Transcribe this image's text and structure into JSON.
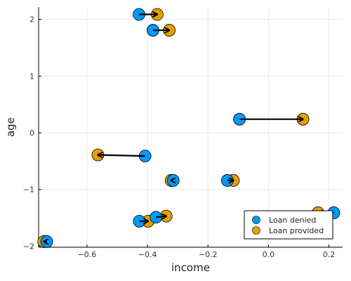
{
  "chart_data": {
    "type": "scatter",
    "xlabel": "income",
    "ylabel": "age",
    "xlim": [
      -0.76,
      0.245
    ],
    "ylim": [
      -2.02,
      2.22
    ],
    "xticks": [
      -0.6,
      -0.4,
      -0.2,
      0.0,
      0.2
    ],
    "xtick_labels": [
      "−0.6",
      "−0.4",
      "−0.2",
      "0.0",
      "0.2"
    ],
    "yticks": [
      -2,
      -1,
      0,
      1,
      2
    ],
    "ytick_labels": [
      "−2",
      "−1",
      "0",
      "1",
      "2"
    ],
    "grid": true,
    "legend_position": "bottom-right",
    "series": [
      {
        "name": "Loan denied",
        "color": "#009af9",
        "x": [
          -0.428,
          -0.382,
          -0.096,
          -0.408,
          -0.315,
          -0.136,
          -0.427,
          -0.372,
          0.216,
          -0.733
        ],
        "y": [
          2.09,
          1.81,
          0.24,
          -0.41,
          -0.84,
          -0.84,
          -1.56,
          -1.49,
          -1.41,
          -1.92
        ]
      },
      {
        "name": "Loan provided",
        "color": "#e69f00",
        "x": [
          -0.368,
          -0.328,
          0.114,
          -0.564,
          -0.322,
          -0.116,
          -0.398,
          -0.338,
          0.164,
          -0.743
        ],
        "y": [
          2.09,
          1.81,
          0.24,
          -0.39,
          -0.84,
          -0.84,
          -1.56,
          -1.47,
          -1.41,
          -1.92
        ]
      }
    ],
    "arrows": [
      {
        "from": [
          -0.428,
          2.09
        ],
        "to": [
          -0.368,
          2.09
        ]
      },
      {
        "from": [
          -0.382,
          1.81
        ],
        "to": [
          -0.328,
          1.81
        ]
      },
      {
        "from": [
          -0.096,
          0.24
        ],
        "to": [
          0.114,
          0.24
        ]
      },
      {
        "from": [
          -0.408,
          -0.41
        ],
        "to": [
          -0.564,
          -0.39
        ]
      },
      {
        "from": [
          -0.315,
          -0.84
        ],
        "to": [
          -0.322,
          -0.84
        ]
      },
      {
        "from": [
          -0.136,
          -0.84
        ],
        "to": [
          -0.116,
          -0.84
        ]
      },
      {
        "from": [
          -0.427,
          -1.56
        ],
        "to": [
          -0.398,
          -1.56
        ]
      },
      {
        "from": [
          -0.372,
          -1.49
        ],
        "to": [
          -0.338,
          -1.47
        ]
      },
      {
        "from": [
          0.216,
          -1.41
        ],
        "to": [
          0.164,
          -1.41
        ]
      },
      {
        "from": [
          -0.733,
          -1.92
        ],
        "to": [
          -0.743,
          -1.92
        ]
      }
    ]
  }
}
